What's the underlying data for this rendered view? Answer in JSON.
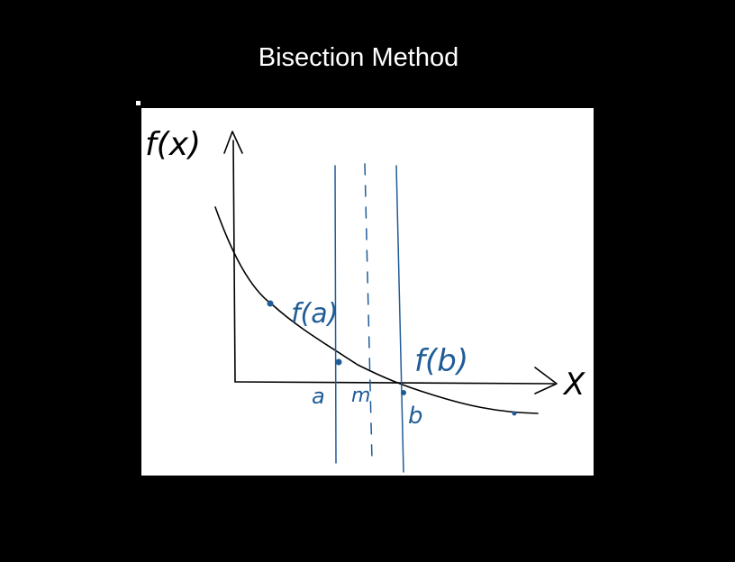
{
  "slide": {
    "title": "Bisection Method"
  },
  "diagram": {
    "y_axis_label": "f(x)",
    "x_axis_label": "X",
    "point_a_label": "a",
    "midpoint_label": "m",
    "point_b_label": "b",
    "fa_label": "f(a)",
    "fb_label": "f(b)",
    "colors": {
      "ink": "#000000",
      "pen": "#1f5c97",
      "board": "#ffffff",
      "background": "#000000"
    }
  }
}
